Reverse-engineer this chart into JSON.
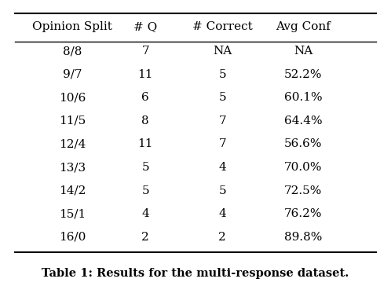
{
  "columns": [
    "Opinion Split",
    "# Q",
    "# Correct",
    "Avg Conf"
  ],
  "rows": [
    [
      "8/8",
      "7",
      "NA",
      "NA"
    ],
    [
      "9/7",
      "11",
      "5",
      "52.2%"
    ],
    [
      "10/6",
      "6",
      "5",
      "60.1%"
    ],
    [
      "11/5",
      "8",
      "7",
      "64.4%"
    ],
    [
      "12/4",
      "11",
      "7",
      "56.6%"
    ],
    [
      "13/3",
      "5",
      "4",
      "70.0%"
    ],
    [
      "14/2",
      "5",
      "5",
      "72.5%"
    ],
    [
      "15/1",
      "4",
      "4",
      "76.2%"
    ],
    [
      "16/0",
      "2",
      "2",
      "89.8%"
    ]
  ],
  "caption": "Table 1: Results for the multi-response dataset.",
  "background_color": "#ffffff",
  "text_color": "#000000",
  "figsize": [
    4.98,
    3.64
  ],
  "dpi": 100
}
